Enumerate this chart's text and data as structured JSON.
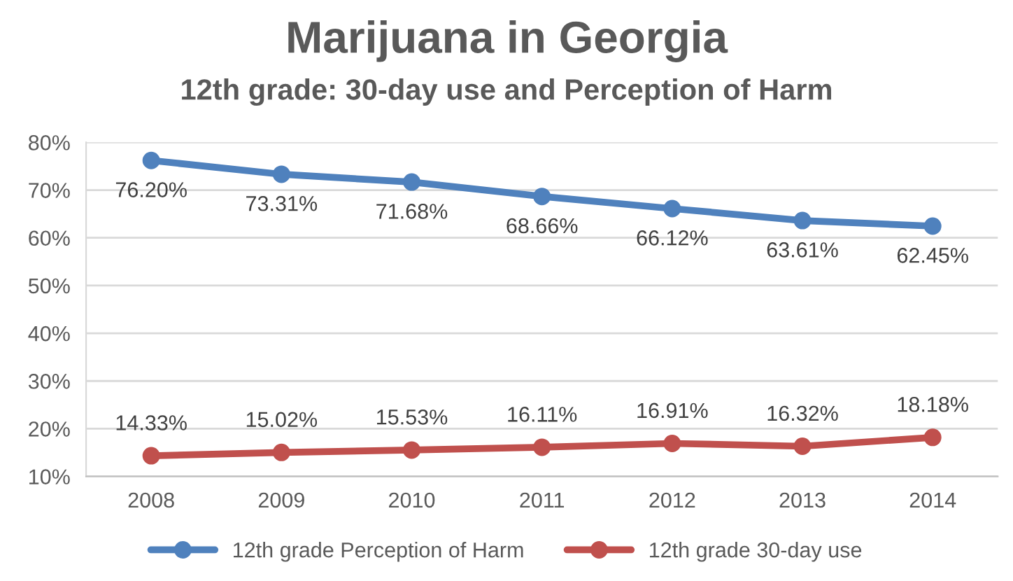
{
  "chart_data": {
    "type": "line",
    "title": "Marijuana in Georgia",
    "subtitle": "12th grade: 30-day use and Perception of Harm",
    "categories": [
      "2008",
      "2009",
      "2010",
      "2011",
      "2012",
      "2013",
      "2014"
    ],
    "series": [
      {
        "name": "12th grade Perception of Harm",
        "color": "#4f81bd",
        "values": [
          76.2,
          73.31,
          71.68,
          68.66,
          66.12,
          63.61,
          62.45
        ],
        "value_labels": [
          "76.20%",
          "73.31%",
          "71.68%",
          "68.66%",
          "66.12%",
          "63.61%",
          "62.45%"
        ]
      },
      {
        "name": "12th grade 30-day use",
        "color": "#c0504d",
        "values": [
          14.33,
          15.02,
          15.53,
          16.11,
          16.91,
          16.32,
          18.18
        ],
        "value_labels": [
          "14.33%",
          "15.02%",
          "15.53%",
          "16.11%",
          "16.91%",
          "16.32%",
          "18.18%"
        ]
      }
    ],
    "ylim": [
      10,
      80
    ],
    "yticks": [
      {
        "value": 10,
        "label": "10%"
      },
      {
        "value": 20,
        "label": "20%"
      },
      {
        "value": 30,
        "label": "30%"
      },
      {
        "value": 40,
        "label": "40%"
      },
      {
        "value": 50,
        "label": "50%"
      },
      {
        "value": 60,
        "label": "60%"
      },
      {
        "value": 70,
        "label": "70%"
      },
      {
        "value": 80,
        "label": "80%"
      }
    ],
    "grid": "y",
    "legend": "bottom",
    "marker": "circle",
    "line_style": "solid"
  }
}
